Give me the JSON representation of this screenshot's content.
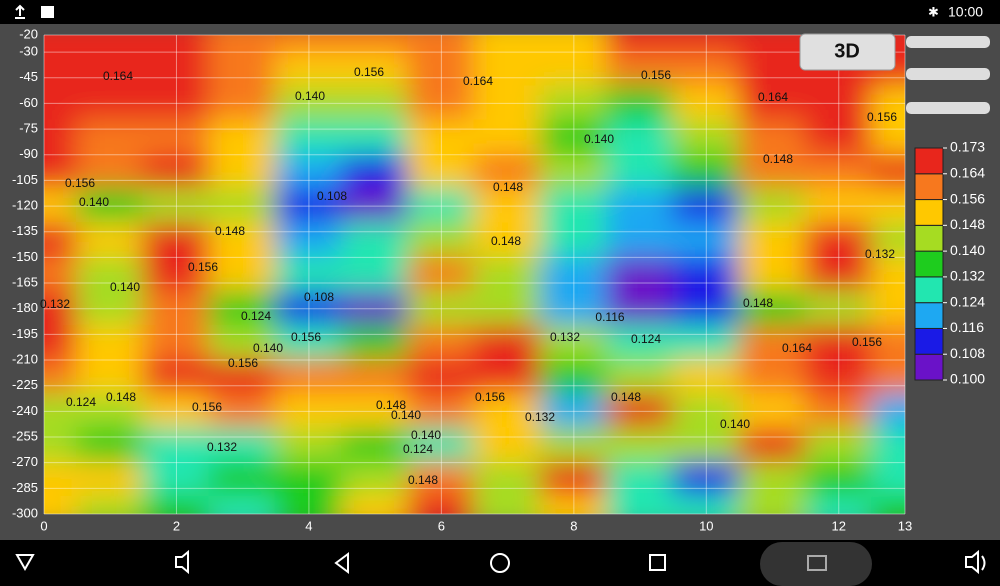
{
  "status_bar": {
    "time": "10:00"
  },
  "button_3d": "3D",
  "chart_data": {
    "type": "contour",
    "x": [
      0,
      1,
      2,
      3,
      4,
      5,
      6,
      7,
      8,
      9,
      10,
      11,
      12,
      13
    ],
    "y": [
      -20,
      -40,
      -60,
      -80,
      -100,
      -120,
      -140,
      -160,
      -180,
      -200,
      -220,
      -240,
      -260,
      -280,
      -300
    ],
    "z": [
      [
        0.168,
        0.168,
        0.166,
        0.156,
        0.156,
        0.156,
        0.156,
        0.152,
        0.152,
        0.164,
        0.168,
        0.168,
        0.168,
        0.168
      ],
      [
        0.168,
        0.168,
        0.166,
        0.156,
        0.15,
        0.152,
        0.156,
        0.152,
        0.15,
        0.156,
        0.16,
        0.168,
        0.168,
        0.166
      ],
      [
        0.164,
        0.168,
        0.168,
        0.156,
        0.14,
        0.14,
        0.156,
        0.152,
        0.14,
        0.136,
        0.148,
        0.164,
        0.164,
        0.15
      ],
      [
        0.168,
        0.156,
        0.16,
        0.15,
        0.13,
        0.128,
        0.15,
        0.15,
        0.138,
        0.13,
        0.14,
        0.156,
        0.164,
        0.148
      ],
      [
        0.168,
        0.156,
        0.168,
        0.15,
        0.118,
        0.114,
        0.148,
        0.156,
        0.14,
        0.13,
        0.135,
        0.156,
        0.16,
        0.164
      ],
      [
        0.152,
        0.135,
        0.14,
        0.145,
        0.11,
        0.104,
        0.13,
        0.15,
        0.13,
        0.12,
        0.11,
        0.14,
        0.148,
        0.148
      ],
      [
        0.164,
        0.152,
        0.168,
        0.152,
        0.12,
        0.128,
        0.14,
        0.15,
        0.125,
        0.118,
        0.12,
        0.15,
        0.168,
        0.14
      ],
      [
        0.16,
        0.145,
        0.164,
        0.15,
        0.13,
        0.13,
        0.16,
        0.14,
        0.12,
        0.106,
        0.112,
        0.15,
        0.164,
        0.148
      ],
      [
        0.164,
        0.145,
        0.158,
        0.135,
        0.11,
        0.104,
        0.14,
        0.14,
        0.118,
        0.104,
        0.108,
        0.135,
        0.145,
        0.15
      ],
      [
        0.17,
        0.15,
        0.156,
        0.145,
        0.13,
        0.135,
        0.156,
        0.165,
        0.14,
        0.125,
        0.13,
        0.156,
        0.168,
        0.16
      ],
      [
        0.158,
        0.15,
        0.164,
        0.164,
        0.16,
        0.156,
        0.164,
        0.164,
        0.138,
        0.14,
        0.152,
        0.16,
        0.165,
        0.16
      ],
      [
        0.14,
        0.145,
        0.155,
        0.156,
        0.15,
        0.148,
        0.16,
        0.15,
        0.12,
        0.165,
        0.14,
        0.15,
        0.156,
        0.12
      ],
      [
        0.14,
        0.135,
        0.13,
        0.13,
        0.14,
        0.135,
        0.125,
        0.148,
        0.14,
        0.14,
        0.145,
        0.165,
        0.14,
        0.125
      ],
      [
        0.155,
        0.148,
        0.13,
        0.132,
        0.135,
        0.145,
        0.156,
        0.14,
        0.165,
        0.13,
        0.11,
        0.14,
        0.132,
        0.128
      ],
      [
        0.148,
        0.14,
        0.132,
        0.13,
        0.135,
        0.148,
        0.164,
        0.14,
        0.148,
        0.13,
        0.125,
        0.14,
        0.128,
        0.132
      ]
    ],
    "xlim": [
      0,
      13
    ],
    "ylim": [
      -300,
      -20
    ],
    "xticks": [
      0,
      2,
      4,
      6,
      8,
      10,
      12,
      13
    ],
    "yticks": [
      -20,
      -30,
      -45,
      -60,
      -75,
      -90,
      -105,
      -120,
      -135,
      -150,
      -165,
      -180,
      -195,
      -210,
      -225,
      -240,
      -255,
      -270,
      -285,
      -300
    ],
    "grid": true,
    "levels": [
      {
        "value": 0.1,
        "label": "0.100"
      },
      0.108,
      0.116,
      0.124,
      0.132,
      {
        "value": 0.14,
        "label": "0.140"
      },
      0.148,
      0.156,
      0.164,
      0.173
    ],
    "colors": [
      "#6a12c8",
      "#1a1ae6",
      "#1ea8f2",
      "#22e6b0",
      "#1ecc1e",
      "#a6dc22",
      "#ffc800",
      "#f7781e",
      "#e8261c"
    ],
    "contour_labels": [
      "0.164",
      "0.156",
      "0.140",
      "0.164",
      "0.156",
      "0.164",
      "0.156",
      "0.140",
      "0.148",
      "0.156",
      "0.140",
      "0.108",
      "0.148",
      "0.148",
      "0.156",
      "0.148",
      "0.132",
      "0.108",
      "0.140",
      "0.124",
      "0.156",
      "0.116",
      "0.124",
      "0.132",
      "0.164",
      "0.156",
      "0.140",
      "0.148",
      "0.156",
      "0.132",
      "0.124",
      "0.148",
      "0.156",
      "0.132",
      "0.140",
      "0.148",
      "0.140",
      "0.124",
      "0.148",
      "0.132",
      "0.156",
      "0.148",
      "0.140"
    ]
  }
}
